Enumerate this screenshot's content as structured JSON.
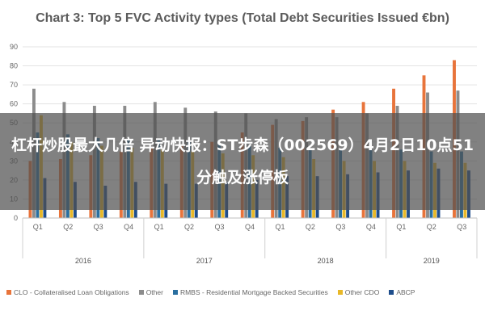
{
  "overlay": {
    "headline": "杠杆炒股最大几倍 异动快报：ST步森（002569）4月2日10点51分触及涨停板"
  },
  "chart_data": {
    "type": "bar",
    "title": "Chart 3: Top 5 FVC Activity types (Total Debt Securities Issued €bn)",
    "ylim": [
      0,
      90
    ],
    "yticks": [
      0,
      10,
      20,
      30,
      40,
      50,
      60,
      70,
      80,
      90
    ],
    "grid": true,
    "legend_position": "bottom",
    "categories": [
      "Q1",
      "Q2",
      "Q3",
      "Q4",
      "Q1",
      "Q2",
      "Q3",
      "Q4",
      "Q1",
      "Q2",
      "Q3",
      "Q4",
      "Q1",
      "Q2",
      "Q3"
    ],
    "groups": [
      {
        "label": "2016",
        "count": 4
      },
      {
        "label": "2017",
        "count": 4
      },
      {
        "label": "2018",
        "count": 4
      },
      {
        "label": "2019",
        "count": 3
      }
    ],
    "series": [
      {
        "name": "CLO - Collateralised Loan Obligations",
        "color": "#e8743b",
        "values": [
          30,
          31,
          33,
          35,
          37,
          38,
          40,
          45,
          49,
          51,
          57,
          61,
          68,
          75,
          83
        ]
      },
      {
        "name": "Other",
        "color": "#8c8c8c",
        "values": [
          68,
          61,
          59,
          59,
          61,
          58,
          56,
          55,
          52,
          53,
          53,
          55,
          59,
          66,
          67
        ]
      },
      {
        "name": "RMBS - Residential Mortgage Backed Securities",
        "color": "#2a6fa0",
        "values": [
          45,
          44,
          42,
          41,
          41,
          40,
          39,
          38,
          37,
          36,
          36,
          36,
          36,
          35,
          35
        ]
      },
      {
        "name": "Other CDO",
        "color": "#e8b828",
        "values": [
          54,
          40,
          38,
          37,
          36,
          35,
          34,
          33,
          32,
          31,
          30,
          30,
          30,
          29,
          29
        ]
      },
      {
        "name": "ABCP",
        "color": "#1f4e8c",
        "values": [
          21,
          19,
          17,
          19,
          18,
          18,
          19,
          20,
          22,
          22,
          23,
          24,
          25,
          26,
          25
        ]
      }
    ]
  }
}
